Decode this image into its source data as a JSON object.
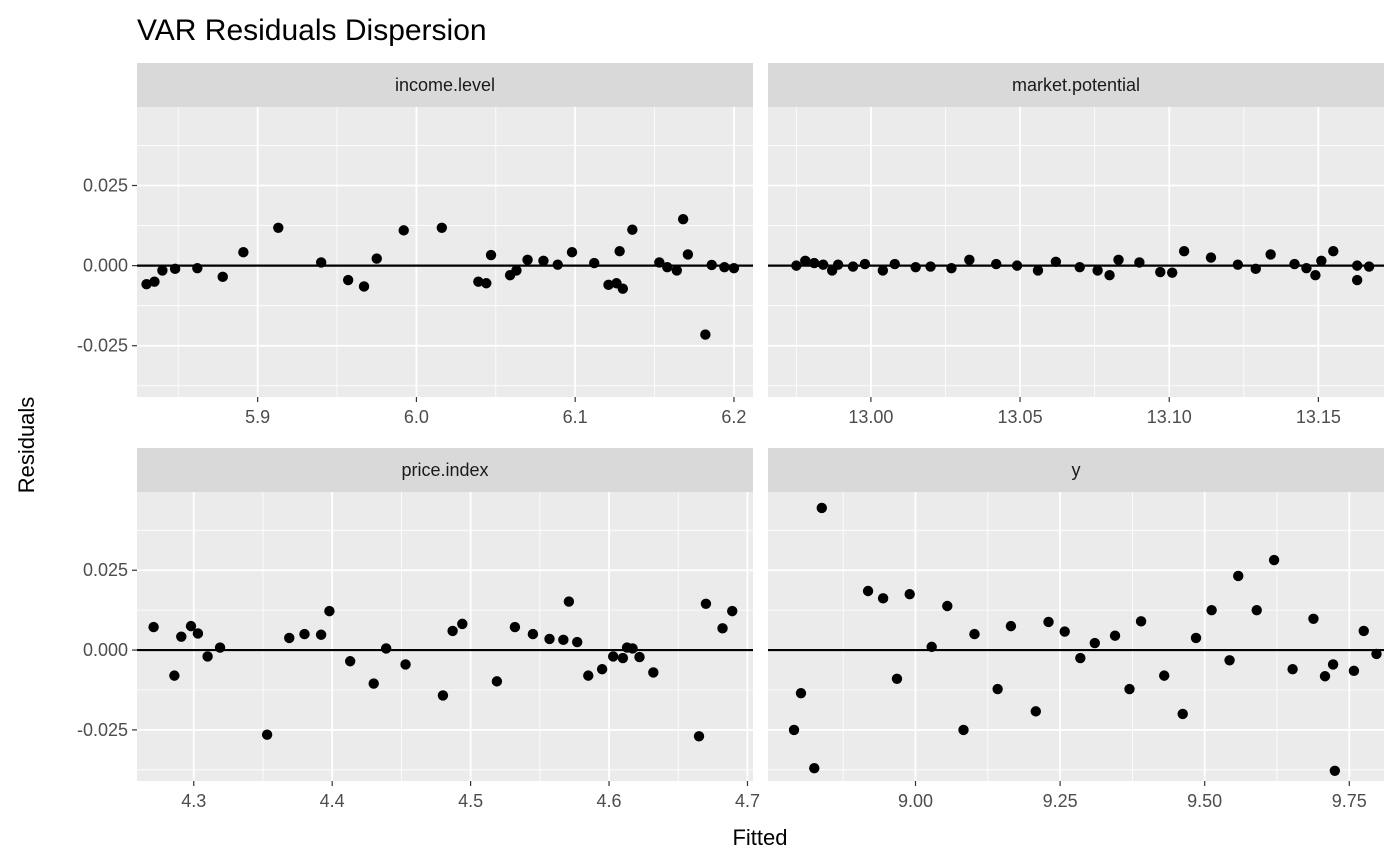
{
  "chart_data": {
    "type": "scatter",
    "title": "VAR Residuals Dispersion",
    "xlabel": "Fitted",
    "ylabel": "Residuals",
    "grid": true,
    "colors": {
      "panel_bg": "#EBEBEB",
      "strip_bg": "#D9D9D9",
      "grid": "#FFFFFF",
      "point": "#000000",
      "hline": "#000000"
    },
    "shared_y": {
      "ylim": [
        -0.041,
        0.0495
      ],
      "ticks": [
        -0.025,
        0.0,
        0.025
      ],
      "tick_labels": [
        "-0.025",
        "0.000",
        "0.025"
      ],
      "reference_line": 0
    },
    "panels": [
      {
        "strip": "income.level",
        "xlim": [
          5.824,
          6.212
        ],
        "xticks": [
          5.9,
          6.0,
          6.1,
          6.2
        ],
        "xtick_labels": [
          "5.9",
          "6.0",
          "6.1",
          "6.2"
        ],
        "points": [
          [
            5.83,
            -0.0058
          ],
          [
            5.835,
            -0.005
          ],
          [
            5.84,
            -0.0015
          ],
          [
            5.848,
            -0.001
          ],
          [
            5.862,
            -0.0008
          ],
          [
            5.878,
            -0.0035
          ],
          [
            5.891,
            0.0042
          ],
          [
            5.913,
            0.0118
          ],
          [
            5.94,
            0.001
          ],
          [
            5.957,
            -0.0045
          ],
          [
            5.967,
            -0.0065
          ],
          [
            5.975,
            0.0022
          ],
          [
            5.992,
            0.011
          ],
          [
            6.016,
            0.0118
          ],
          [
            6.039,
            -0.005
          ],
          [
            6.044,
            -0.0055
          ],
          [
            6.047,
            0.0033
          ],
          [
            6.059,
            -0.003
          ],
          [
            6.063,
            -0.0015
          ],
          [
            6.07,
            0.0018
          ],
          [
            6.08,
            0.0015
          ],
          [
            6.089,
            0.0003
          ],
          [
            6.098,
            0.0042
          ],
          [
            6.112,
            0.0008
          ],
          [
            6.121,
            -0.006
          ],
          [
            6.126,
            -0.0055
          ],
          [
            6.128,
            0.0045
          ],
          [
            6.13,
            -0.0072
          ],
          [
            6.136,
            0.0112
          ],
          [
            6.153,
            0.001
          ],
          [
            6.158,
            -0.0005
          ],
          [
            6.164,
            -0.0015
          ],
          [
            6.168,
            0.0145
          ],
          [
            6.171,
            0.0035
          ],
          [
            6.182,
            -0.0215
          ],
          [
            6.186,
            0.0002
          ],
          [
            6.194,
            -0.0005
          ],
          [
            6.2,
            -0.0008
          ]
        ]
      },
      {
        "strip": "market.potential",
        "xlim": [
          12.9655,
          13.172
        ],
        "xticks": [
          13.0,
          13.05,
          13.1,
          13.15
        ],
        "xtick_labels": [
          "13.00",
          "13.05",
          "13.10",
          "13.15"
        ],
        "points": [
          [
            12.975,
            0.0
          ],
          [
            12.978,
            0.0015
          ],
          [
            12.981,
            0.0008
          ],
          [
            12.984,
            0.0003
          ],
          [
            12.987,
            -0.0015
          ],
          [
            12.989,
            0.0003
          ],
          [
            12.994,
            -0.0003
          ],
          [
            12.998,
            0.0005
          ],
          [
            13.004,
            -0.0015
          ],
          [
            13.008,
            0.0005
          ],
          [
            13.015,
            -0.0005
          ],
          [
            13.02,
            -0.0003
          ],
          [
            13.027,
            -0.0008
          ],
          [
            13.033,
            0.0018
          ],
          [
            13.042,
            0.0005
          ],
          [
            13.049,
            0.0
          ],
          [
            13.056,
            -0.0015
          ],
          [
            13.062,
            0.0012
          ],
          [
            13.07,
            -0.0005
          ],
          [
            13.076,
            -0.0015
          ],
          [
            13.08,
            -0.003
          ],
          [
            13.083,
            0.0018
          ],
          [
            13.09,
            0.001
          ],
          [
            13.097,
            -0.002
          ],
          [
            13.101,
            -0.0022
          ],
          [
            13.105,
            0.0045
          ],
          [
            13.114,
            0.0025
          ],
          [
            13.123,
            0.0003
          ],
          [
            13.129,
            -0.001
          ],
          [
            13.134,
            0.0035
          ],
          [
            13.142,
            0.0005
          ],
          [
            13.146,
            -0.0008
          ],
          [
            13.149,
            -0.003
          ],
          [
            13.151,
            0.0015
          ],
          [
            13.155,
            0.0045
          ],
          [
            13.163,
            0.0
          ],
          [
            13.163,
            -0.0045
          ],
          [
            13.167,
            -0.0003
          ]
        ]
      },
      {
        "strip": "price.index",
        "xlim": [
          4.259,
          4.704
        ],
        "xticks": [
          4.3,
          4.4,
          4.5,
          4.6,
          4.7
        ],
        "xtick_labels": [
          "4.3",
          "4.4",
          "4.5",
          "4.6",
          "4.7"
        ],
        "points": [
          [
            4.271,
            0.0072
          ],
          [
            4.286,
            -0.008
          ],
          [
            4.291,
            0.0042
          ],
          [
            4.298,
            0.0075
          ],
          [
            4.303,
            0.0052
          ],
          [
            4.31,
            -0.002
          ],
          [
            4.319,
            0.0008
          ],
          [
            4.353,
            -0.0265
          ],
          [
            4.369,
            0.0038
          ],
          [
            4.38,
            0.005
          ],
          [
            4.392,
            0.0048
          ],
          [
            4.398,
            0.0122
          ],
          [
            4.413,
            -0.0035
          ],
          [
            4.43,
            -0.0105
          ],
          [
            4.439,
            0.0005
          ],
          [
            4.453,
            -0.0045
          ],
          [
            4.48,
            -0.0142
          ],
          [
            4.487,
            0.006
          ],
          [
            4.494,
            0.0082
          ],
          [
            4.519,
            -0.0098
          ],
          [
            4.532,
            0.0072
          ],
          [
            4.545,
            0.005
          ],
          [
            4.557,
            0.0035
          ],
          [
            4.567,
            0.0032
          ],
          [
            4.571,
            0.0152
          ],
          [
            4.577,
            0.0025
          ],
          [
            4.585,
            -0.008
          ],
          [
            4.595,
            -0.006
          ],
          [
            4.603,
            -0.002
          ],
          [
            4.61,
            -0.0025
          ],
          [
            4.613,
            0.0008
          ],
          [
            4.617,
            0.0005
          ],
          [
            4.622,
            -0.0022
          ],
          [
            4.632,
            -0.007
          ],
          [
            4.665,
            -0.027
          ],
          [
            4.67,
            0.0145
          ],
          [
            4.682,
            0.0068
          ],
          [
            4.689,
            0.0122
          ]
        ]
      },
      {
        "strip": "y",
        "xlim": [
          8.745,
          9.81
        ],
        "xticks": [
          9.0,
          9.25,
          9.5,
          9.75
        ],
        "xtick_labels": [
          "9.00",
          "9.25",
          "9.50",
          "9.75"
        ],
        "points": [
          [
            8.79,
            -0.025
          ],
          [
            8.802,
            -0.0135
          ],
          [
            8.825,
            -0.037
          ],
          [
            8.838,
            0.0445
          ],
          [
            8.918,
            0.0185
          ],
          [
            8.944,
            0.0162
          ],
          [
            8.968,
            -0.009
          ],
          [
            8.99,
            0.0175
          ],
          [
            9.028,
            0.001
          ],
          [
            9.055,
            0.0138
          ],
          [
            9.083,
            -0.025
          ],
          [
            9.102,
            0.005
          ],
          [
            9.142,
            -0.0122
          ],
          [
            9.165,
            0.0075
          ],
          [
            9.208,
            -0.0192
          ],
          [
            9.23,
            0.0088
          ],
          [
            9.258,
            0.0058
          ],
          [
            9.285,
            -0.0025
          ],
          [
            9.31,
            0.0022
          ],
          [
            9.345,
            0.0045
          ],
          [
            9.37,
            -0.0122
          ],
          [
            9.39,
            0.009
          ],
          [
            9.43,
            -0.008
          ],
          [
            9.462,
            -0.02
          ],
          [
            9.485,
            0.0038
          ],
          [
            9.512,
            0.0125
          ],
          [
            9.543,
            -0.0032
          ],
          [
            9.558,
            0.0232
          ],
          [
            9.59,
            0.0125
          ],
          [
            9.62,
            0.0282
          ],
          [
            9.652,
            -0.006
          ],
          [
            9.688,
            0.0098
          ],
          [
            9.708,
            -0.0082
          ],
          [
            9.722,
            -0.0045
          ],
          [
            9.725,
            -0.0378
          ],
          [
            9.758,
            -0.0065
          ],
          [
            9.775,
            0.006
          ],
          [
            9.797,
            -0.0012
          ]
        ]
      }
    ]
  }
}
